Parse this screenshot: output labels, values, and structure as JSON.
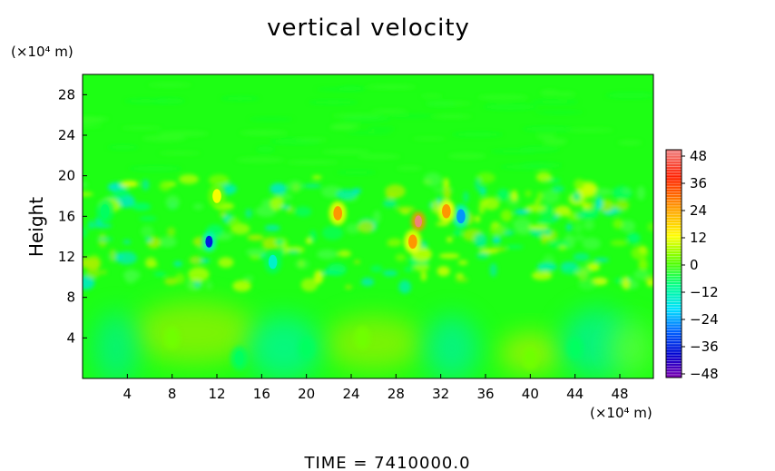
{
  "chart_data": {
    "type": "heatmap",
    "title": "vertical velocity",
    "ylabel": "Height",
    "y_unit": "(×10⁴ m)",
    "x_unit": "(×10⁴ m)",
    "xlim": [
      0,
      51
    ],
    "ylim": [
      0,
      30
    ],
    "x_ticks": [
      4,
      8,
      12,
      16,
      20,
      24,
      28,
      32,
      36,
      40,
      44,
      48
    ],
    "y_ticks": [
      4,
      8,
      12,
      16,
      20,
      24,
      28
    ],
    "colorbar": {
      "ticks": [
        48,
        36,
        24,
        12,
        0,
        -12,
        -24,
        -36,
        -48
      ],
      "range": [
        -48,
        48
      ],
      "colors": [
        "#f08080",
        "#ff2000",
        "#ff9000",
        "#ffff00",
        "#70ff00",
        "#00ff60",
        "#00f0d0",
        "#0090ff",
        "#0010e0",
        "#8000c0"
      ]
    },
    "time_text": "TIME  =  7410000.0",
    "features": [
      {
        "x": 30,
        "y": 15.5,
        "value": 45
      },
      {
        "x": 29.5,
        "y": 13.5,
        "value": 30
      },
      {
        "x": 11.3,
        "y": 13.5,
        "value": -38
      },
      {
        "x": 33.8,
        "y": 16,
        "value": -28
      },
      {
        "x": 8,
        "y": 4,
        "value": 8
      },
      {
        "x": 25,
        "y": 4,
        "value": 7
      },
      {
        "x": 40,
        "y": 2,
        "value": 6
      },
      {
        "x": 14,
        "y": 2,
        "value": -8
      },
      {
        "x": 20,
        "y": 3,
        "value": -7
      },
      {
        "x": 44,
        "y": 3,
        "value": -6
      },
      {
        "x": 2,
        "y": 16.5,
        "value": -10
      },
      {
        "x": 22.8,
        "y": 16.3,
        "value": 25
      },
      {
        "x": 12,
        "y": 18,
        "value": 15
      },
      {
        "x": 32.5,
        "y": 16.5,
        "value": 24
      },
      {
        "x": 17,
        "y": 11.5,
        "value": -14
      }
    ]
  }
}
